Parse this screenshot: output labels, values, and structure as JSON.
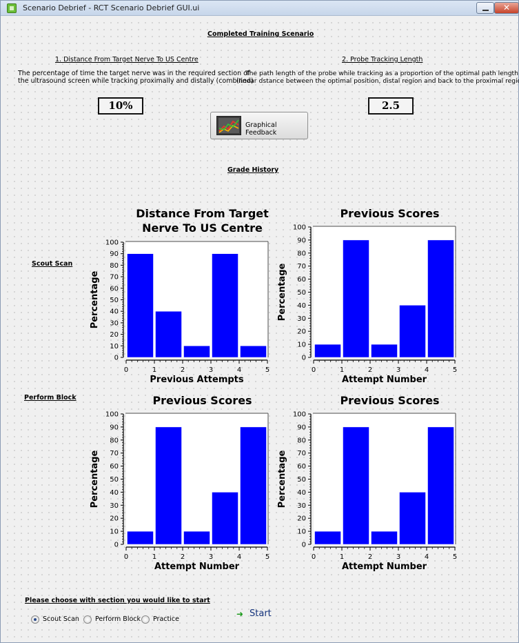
{
  "window": {
    "title": "Scenario Debrief - RCT Scenario Debrief GUI.ui",
    "close_glyph": "✕"
  },
  "header": {
    "title": "Completed Training Scenario"
  },
  "metric1": {
    "heading": "1. Distance From Target Nerve To US Centre",
    "desc_line1": "The percentage of time the target nerve was in the required section of",
    "desc_line2": "the ultrasound screen while tracking proximally and distally (combined)",
    "value": "10%"
  },
  "metric2": {
    "heading": "2. Probe Tracking Length",
    "desc_line1": "The path length of the probe while tracking as a proportion of the optimal path length",
    "desc_line2": "(linear dstance between the optimal position, distal region and back to the proximal region)",
    "value": "2.5"
  },
  "graphical_feedback": {
    "label": "Graphical Feedback",
    "icon": "line-chart-icon"
  },
  "grade_history": {
    "title": "Grade History"
  },
  "rows": {
    "scout_scan": "Scout Scan",
    "perform_block": "Perform Block"
  },
  "chart_data": [
    {
      "type": "bar",
      "title_line1": "Distance From Target",
      "title_line2": "Nerve To US Centre",
      "xlabel": "Previous Attempts",
      "ylabel": "Percentage",
      "x": [
        0.5,
        1.5,
        2.5,
        3.5,
        4.5
      ],
      "values": [
        90,
        40,
        10,
        90,
        10
      ],
      "xlim": [
        0,
        5
      ],
      "ylim": [
        0,
        100
      ],
      "xticks": [
        "0",
        "1",
        "2",
        "3",
        "4",
        "5"
      ],
      "yticks": [
        "0",
        "10",
        "20",
        "30",
        "40",
        "50",
        "60",
        "70",
        "80",
        "90",
        "100"
      ],
      "bar_color": "#0000ff"
    },
    {
      "type": "bar",
      "title_line1": "Previous Scores",
      "title_line2": "",
      "xlabel": "Attempt Number",
      "ylabel": "Percentage",
      "x": [
        0.5,
        1.5,
        2.5,
        3.5,
        4.5
      ],
      "values": [
        10,
        90,
        10,
        40,
        90
      ],
      "xlim": [
        0,
        5
      ],
      "ylim": [
        0,
        100
      ],
      "xticks": [
        "0",
        "1",
        "2",
        "3",
        "4",
        "5"
      ],
      "yticks": [
        "0",
        "10",
        "20",
        "30",
        "40",
        "50",
        "60",
        "70",
        "80",
        "90",
        "100"
      ],
      "bar_color": "#0000ff"
    },
    {
      "type": "bar",
      "title_line1": "Previous Scores",
      "title_line2": "",
      "xlabel": "Attempt Number",
      "ylabel": "Percentage",
      "x": [
        0.5,
        1.5,
        2.5,
        3.5,
        4.5
      ],
      "values": [
        10,
        90,
        10,
        40,
        90
      ],
      "xlim": [
        0,
        5
      ],
      "ylim": [
        0,
        100
      ],
      "xticks": [
        "0",
        "1",
        "2",
        "3",
        "4",
        "5"
      ],
      "yticks": [
        "0",
        "10",
        "20",
        "30",
        "40",
        "50",
        "60",
        "70",
        "80",
        "90",
        "100"
      ],
      "bar_color": "#0000ff"
    },
    {
      "type": "bar",
      "title_line1": "Previous Scores",
      "title_line2": "",
      "xlabel": "Attempt Number",
      "ylabel": "Percentage",
      "x": [
        0.5,
        1.5,
        2.5,
        3.5,
        4.5
      ],
      "values": [
        10,
        90,
        10,
        40,
        90
      ],
      "xlim": [
        0,
        5
      ],
      "ylim": [
        0,
        100
      ],
      "xticks": [
        "0",
        "1",
        "2",
        "3",
        "4",
        "5"
      ],
      "yticks": [
        "0",
        "10",
        "20",
        "30",
        "40",
        "50",
        "60",
        "70",
        "80",
        "90",
        "100"
      ],
      "bar_color": "#0000ff"
    }
  ],
  "footer": {
    "prompt": "Please choose with section you would like to start",
    "options": [
      "Scout Scan",
      "Perform Block",
      "Practice"
    ],
    "selected": "Scout Scan",
    "start_label": "Start",
    "start_icon": "green-arrow-icon"
  }
}
